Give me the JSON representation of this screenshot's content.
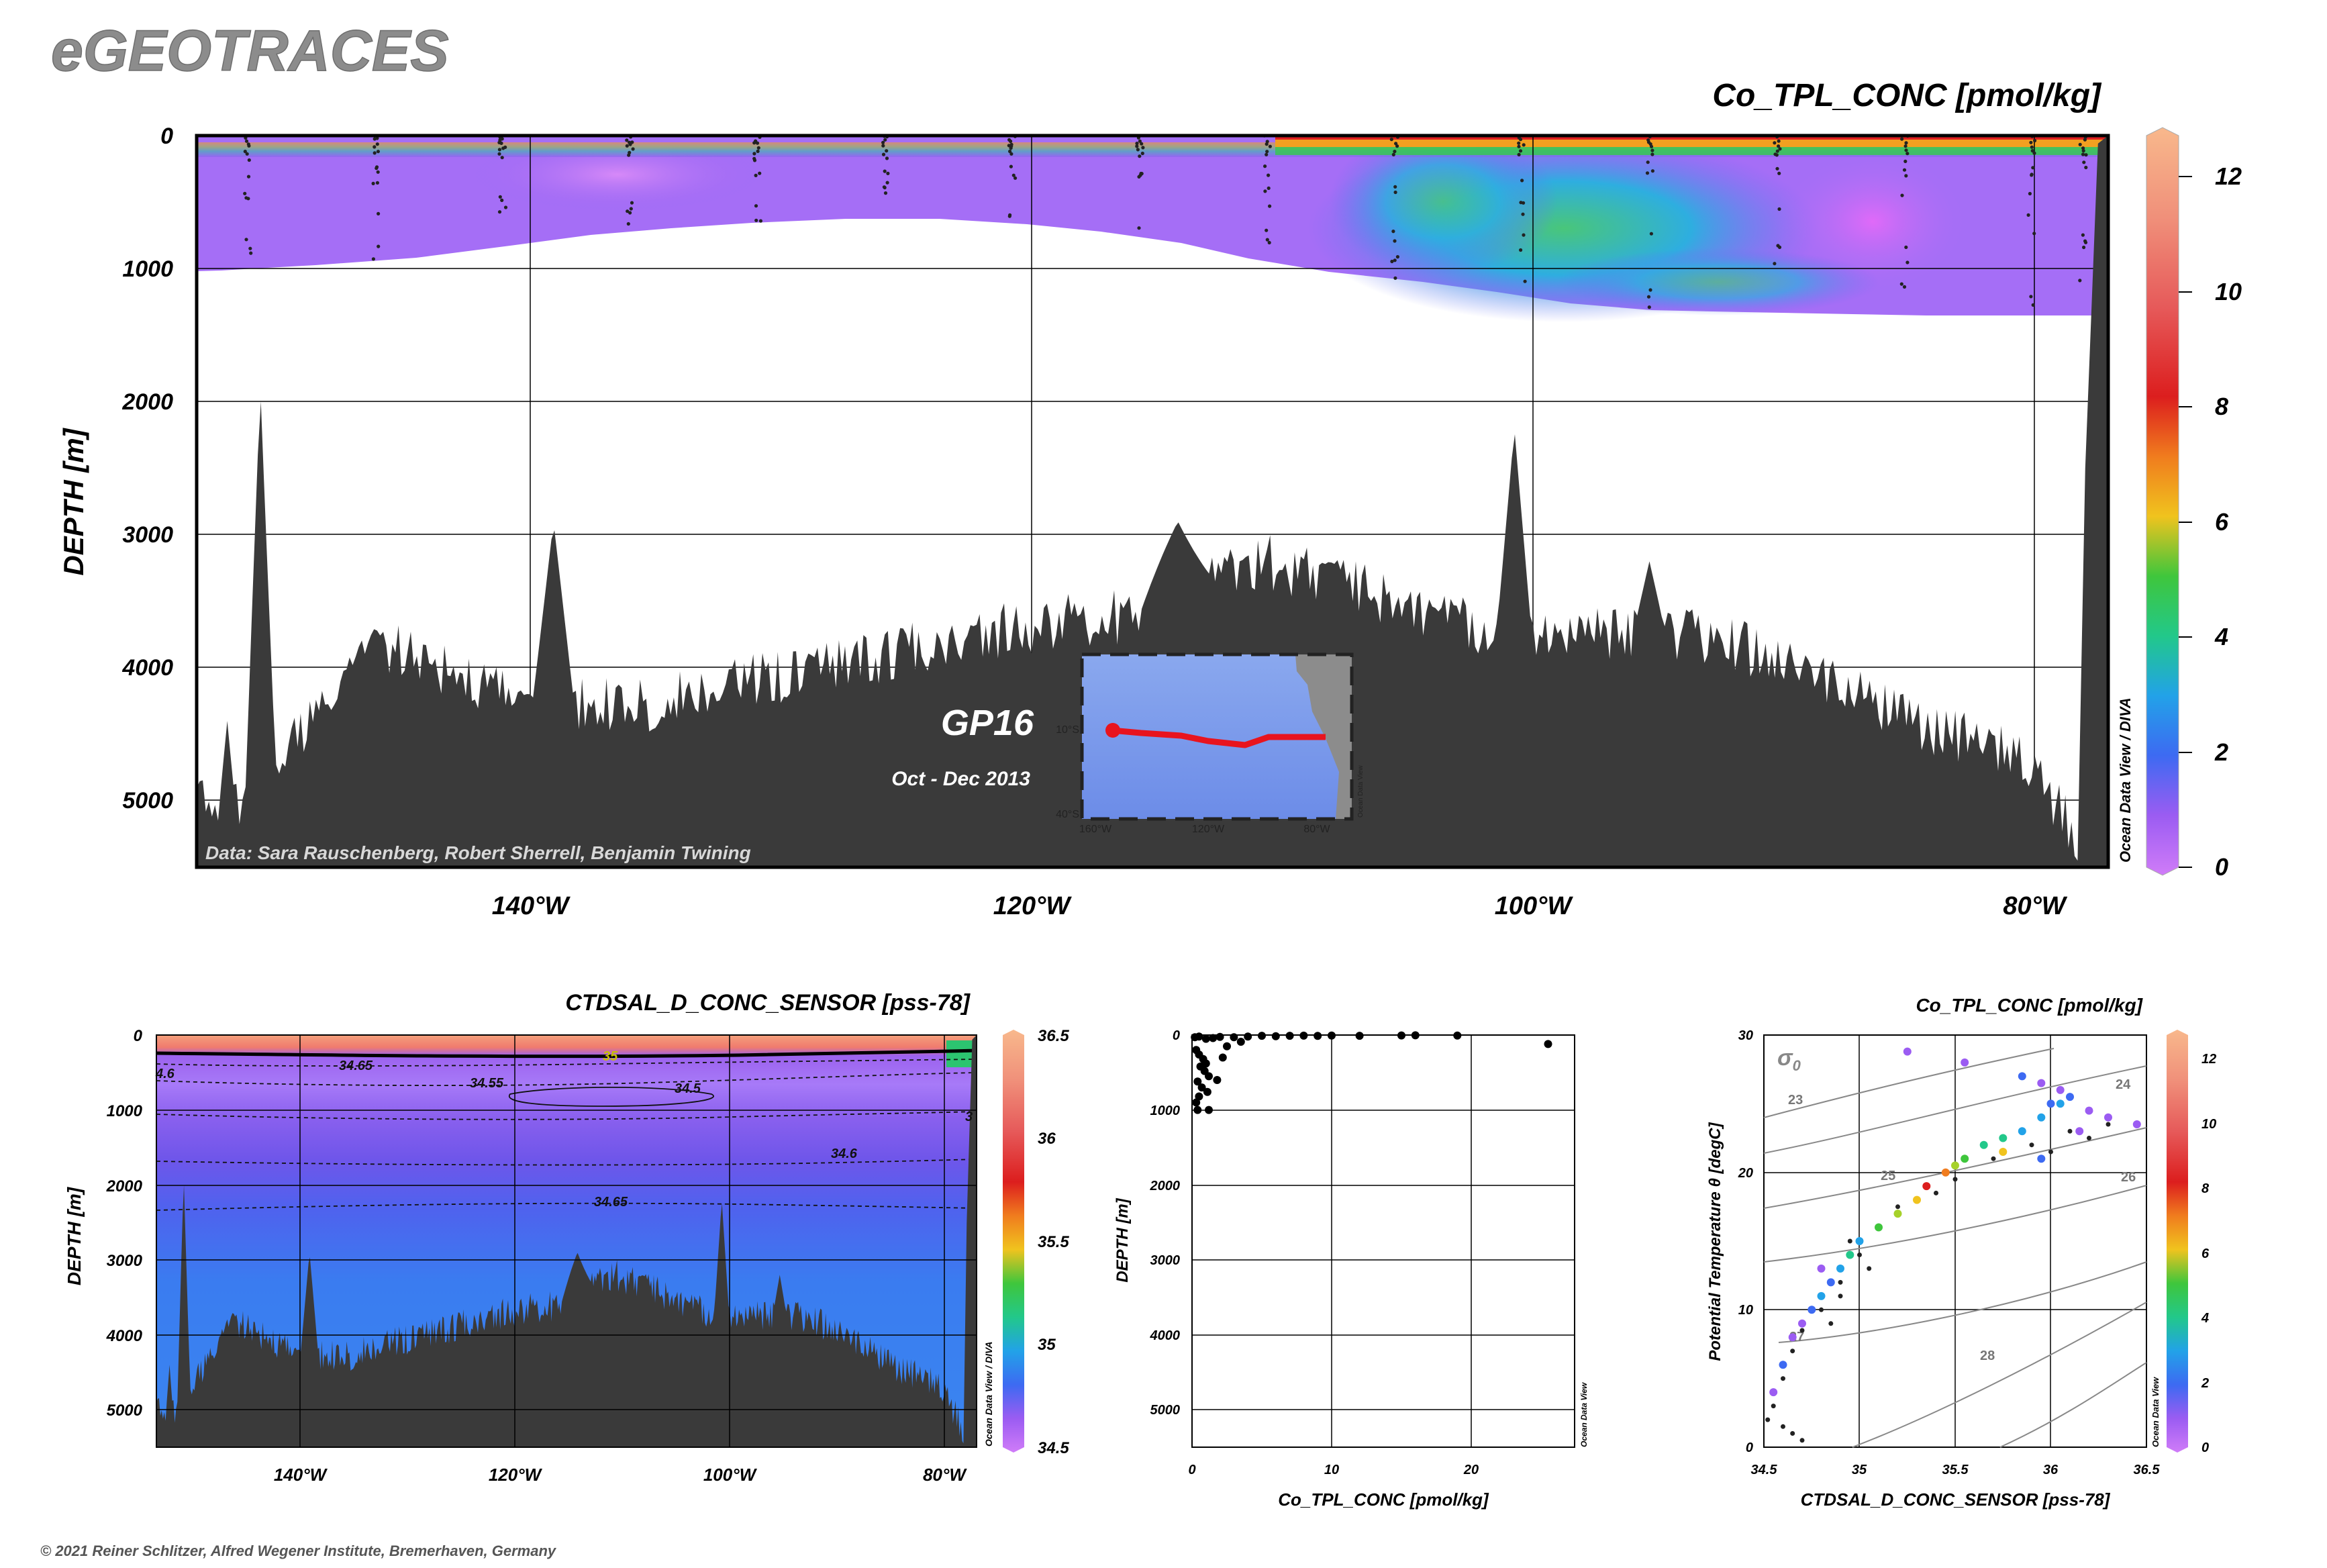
{
  "header": {
    "app_title": "eGEOTRACES",
    "copyright": "© 2021 Reiner Schlitzer, Alfred Wegener Institute, Bremerhaven, Germany"
  },
  "colors": {
    "bathymetry": "#3a3a3a",
    "colorbar_top": "#f8b88c",
    "colorbar_bottom": "#d07cf8",
    "cruise_track": "#e8141e"
  },
  "main_section": {
    "variable_title": "Co_TPL_CONC [pmol/kg]",
    "ylabel": "DEPTH [m]",
    "y_ticks": [
      "0",
      "1000",
      "2000",
      "3000",
      "4000",
      "5000"
    ],
    "x_ticks": [
      "140°W",
      "120°W",
      "100°W",
      "80°W"
    ],
    "colorbar_ticks": [
      "0",
      "2",
      "4",
      "6",
      "8",
      "10",
      "12"
    ],
    "credit": "Ocean Data View / DIVA",
    "data_credit": "Data: Sara Rauschenberg, Robert Sherrell, Benjamin Twining",
    "section_name": "GP16",
    "cruise_dates": "Oct - Dec 2013",
    "inset_map": {
      "lat_labels": [
        "10°S",
        "40°S"
      ],
      "lon_labels": [
        "160°W",
        "120°W",
        "80°W"
      ],
      "credit": "Ocean Data View"
    }
  },
  "salinity_section": {
    "variable_title": "CTDSAL_D_CONC_SENSOR [pss-78]",
    "ylabel": "DEPTH [m]",
    "y_ticks": [
      "0",
      "1000",
      "2000",
      "3000",
      "4000",
      "5000"
    ],
    "x_ticks": [
      "140°W",
      "120°W",
      "100°W",
      "80°W"
    ],
    "colorbar_ticks": [
      "34.5",
      "35",
      "35.5",
      "36",
      "36.5"
    ],
    "contour_labels": [
      "34.65",
      "35",
      "34.55",
      "34.5",
      "34.6",
      "34.65",
      "4.6",
      "3"
    ],
    "credit": "Ocean Data View / DIVA"
  },
  "profile_plot": {
    "xlabel": "Co_TPL_CONC [pmol/kg]",
    "ylabel": "DEPTH [m]",
    "x_ticks": [
      "0",
      "10",
      "20"
    ],
    "y_ticks": [
      "0",
      "1000",
      "2000",
      "3000",
      "4000",
      "5000"
    ],
    "credit": "Ocean Data View"
  },
  "ts_plot": {
    "colorvar_title": "Co_TPL_CONC [pmol/kg]",
    "xlabel": "CTDSAL_D_CONC_SENSOR [pss-78]",
    "ylabel": "Potential Temperature θ [degC]",
    "x_ticks": [
      "34.5",
      "35",
      "35.5",
      "36",
      "36.5"
    ],
    "y_ticks": [
      "0",
      "10",
      "20",
      "30"
    ],
    "sigma_symbol": "σ",
    "sigma_subscript": "0",
    "isopycnal_labels": [
      "23",
      "24",
      "25",
      "26",
      "27",
      "28"
    ],
    "colorbar_ticks": [
      "0",
      "2",
      "4",
      "6",
      "8",
      "10",
      "12"
    ],
    "credit": "Ocean Data View"
  },
  "chart_data": [
    {
      "type": "heatmap",
      "title": "Co_TPL_CONC [pmol/kg]",
      "xlabel": "",
      "ylabel": "DEPTH [m]",
      "x_range": [
        "152°W",
        "77°W"
      ],
      "ylim": [
        5500,
        0
      ],
      "color_range": [
        0,
        12.5
      ],
      "sample_lon": [
        -150,
        -145,
        -140,
        -135,
        -130,
        -125,
        -120,
        -115,
        -110,
        -105,
        -100,
        -95,
        -90,
        -85,
        -80,
        -78
      ],
      "max_sampled_depth": [
        1000,
        950,
        800,
        700,
        650,
        620,
        680,
        800,
        950,
        1150,
        1250,
        1300,
        1300,
        1300,
        1300,
        1300
      ],
      "surface_value_approx": [
        1,
        1,
        1.5,
        1,
        1,
        2,
        1,
        1,
        3,
        3,
        5,
        6,
        6,
        6,
        5,
        8
      ],
      "bathymetry_depth_approx": [
        5000,
        3800,
        4200,
        4300,
        4100,
        3900,
        3700,
        3600,
        3200,
        3500,
        3800,
        3700,
        3900,
        4400,
        4700,
        5400
      ]
    },
    {
      "type": "heatmap",
      "title": "CTDSAL_D_CONC_SENSOR [pss-78]",
      "ylabel": "DEPTH [m]",
      "x_range": [
        "152°W",
        "77°W"
      ],
      "ylim": [
        5500,
        0
      ],
      "color_range": [
        34.5,
        36.5
      ],
      "layers": [
        {
          "depth_range": [
            0,
            200
          ],
          "salinity": 36.3
        },
        {
          "depth_range": [
            200,
            500
          ],
          "salinity": 34.8
        },
        {
          "depth_range": [
            500,
            900
          ],
          "salinity": 34.52
        },
        {
          "depth_range": [
            900,
            1500
          ],
          "salinity": 34.57
        },
        {
          "depth_range": [
            1500,
            2200
          ],
          "salinity": 34.62
        },
        {
          "depth_range": [
            2200,
            5500
          ],
          "salinity": 34.68
        }
      ]
    },
    {
      "type": "scatter",
      "title": "",
      "xlabel": "Co_TPL_CONC [pmol/kg]",
      "ylabel": "DEPTH [m]",
      "xlim": [
        0,
        28
      ],
      "ylim": [
        5500,
        0
      ],
      "points": [
        [
          0.2,
          30
        ],
        [
          0.5,
          20
        ],
        [
          1,
          50
        ],
        [
          1.5,
          40
        ],
        [
          2,
          25
        ],
        [
          3,
          30
        ],
        [
          4,
          20
        ],
        [
          5,
          10
        ],
        [
          6,
          15
        ],
        [
          7,
          10
        ],
        [
          8,
          8
        ],
        [
          9,
          12
        ],
        [
          10,
          6
        ],
        [
          12,
          10
        ],
        [
          15,
          5
        ],
        [
          16,
          4
        ],
        [
          19,
          6
        ],
        [
          25.5,
          120
        ],
        [
          0.3,
          200
        ],
        [
          0.5,
          260
        ],
        [
          0.8,
          320
        ],
        [
          1,
          380
        ],
        [
          0.6,
          420
        ],
        [
          0.9,
          480
        ],
        [
          1.2,
          550
        ],
        [
          0.4,
          620
        ],
        [
          0.7,
          700
        ],
        [
          1.1,
          760
        ],
        [
          0.5,
          820
        ],
        [
          0.3,
          900
        ],
        [
          0.4,
          1000
        ],
        [
          1.2,
          1000
        ],
        [
          2.5,
          150
        ],
        [
          3.5,
          90
        ],
        [
          2.2,
          300
        ],
        [
          1.8,
          600
        ]
      ]
    },
    {
      "type": "scatter",
      "title": "Co_TPL_CONC [pmol/kg]",
      "xlabel": "CTDSAL_D_CONC_SENSOR [pss-78]",
      "ylabel": "Potential Temperature θ [degC]",
      "xlim": [
        34.5,
        36.5
      ],
      "ylim": [
        0,
        30
      ],
      "color_range": [
        0,
        12.5
      ],
      "colored_points": [
        [
          34.55,
          4,
          1.5
        ],
        [
          34.6,
          6,
          2
        ],
        [
          34.65,
          8,
          1
        ],
        [
          34.7,
          9,
          1.5
        ],
        [
          34.75,
          10,
          2
        ],
        [
          34.8,
          11,
          3
        ],
        [
          34.85,
          12,
          2.5
        ],
        [
          34.9,
          13,
          3
        ],
        [
          34.95,
          14,
          4
        ],
        [
          35.0,
          15,
          3.5
        ],
        [
          35.1,
          16,
          5
        ],
        [
          35.2,
          17,
          6
        ],
        [
          35.3,
          18,
          7
        ],
        [
          35.35,
          19,
          9
        ],
        [
          35.45,
          20,
          8
        ],
        [
          35.55,
          21,
          5
        ],
        [
          35.65,
          22,
          4
        ],
        [
          35.75,
          22.5,
          4
        ],
        [
          35.85,
          23,
          3
        ],
        [
          35.95,
          24,
          3
        ],
        [
          36.0,
          25,
          2
        ],
        [
          36.05,
          26,
          1.5
        ],
        [
          36.1,
          25.5,
          2
        ],
        [
          36.2,
          24.5,
          1
        ],
        [
          36.3,
          24,
          1
        ],
        [
          36.45,
          23.5,
          1
        ],
        [
          35.85,
          27,
          2
        ],
        [
          35.95,
          26.5,
          1
        ],
        [
          36.05,
          25,
          3
        ],
        [
          36.15,
          23,
          1
        ],
        [
          35.55,
          28,
          1
        ],
        [
          35.25,
          28.8,
          1
        ],
        [
          35.75,
          21.5,
          7
        ],
        [
          35.5,
          20.5,
          6
        ],
        [
          35.95,
          21,
          2
        ],
        [
          34.8,
          13,
          1
        ]
      ],
      "black_points": [
        [
          34.52,
          2
        ],
        [
          34.55,
          3
        ],
        [
          34.6,
          1.5
        ],
        [
          34.65,
          1
        ],
        [
          34.7,
          0.5
        ],
        [
          34.6,
          5
        ],
        [
          34.65,
          7
        ],
        [
          34.7,
          8.5
        ],
        [
          34.8,
          10
        ],
        [
          34.9,
          12
        ],
        [
          35.0,
          14
        ],
        [
          35.1,
          16
        ],
        [
          35.2,
          17.5
        ],
        [
          35.4,
          18.5
        ],
        [
          35.5,
          19.5
        ],
        [
          35.7,
          21
        ],
        [
          35.9,
          22
        ],
        [
          36.1,
          23
        ],
        [
          36.3,
          23.5
        ],
        [
          36.2,
          22.5
        ],
        [
          36.0,
          21.5
        ],
        [
          34.9,
          11
        ],
        [
          34.95,
          15
        ],
        [
          35.05,
          13
        ],
        [
          34.85,
          9
        ]
      ],
      "isopycnals": [
        23,
        24,
        25,
        26,
        27,
        28
      ]
    }
  ]
}
